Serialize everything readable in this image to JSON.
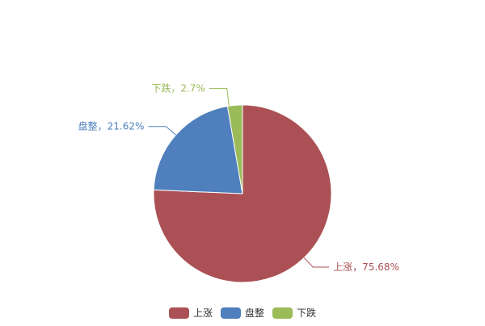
{
  "chart_data": {
    "type": "pie",
    "title": "",
    "start_angle": "top, clockwise",
    "legend_position": "bottom",
    "slices": [
      {
        "name": "上涨",
        "value": 75.68,
        "label": "上涨，75.68%",
        "color": "#ab5155"
      },
      {
        "name": "盘整",
        "value": 21.62,
        "label": "盘整，21.62%",
        "color": "#4f7fbd"
      },
      {
        "name": "下跌",
        "value": 2.7,
        "label": "下跌，2.7%",
        "color": "#9bbb59"
      }
    ]
  },
  "legend": {
    "text_color": "#333333"
  }
}
